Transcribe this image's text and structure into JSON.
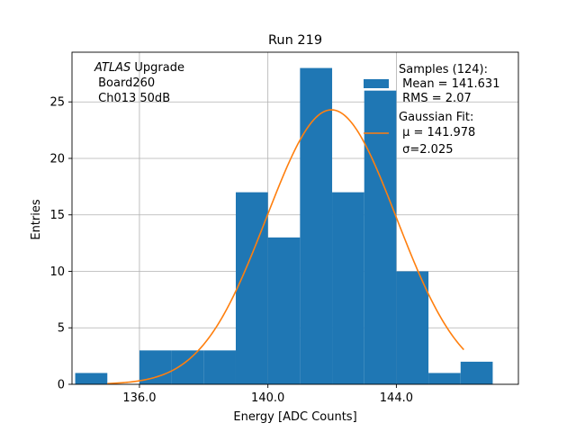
{
  "chart_data": {
    "type": "bar",
    "title": "Run 219",
    "xlabel": "Energy [ADC Counts]",
    "ylabel": "Entries",
    "xlim": [
      133.9,
      147.8
    ],
    "ylim": [
      0,
      29.4
    ],
    "xticks": [
      136.0,
      140.0,
      144.0
    ],
    "xtick_labels": [
      "136.0",
      "140.0",
      "144.0"
    ],
    "yticks": [
      0,
      5,
      10,
      15,
      20,
      25
    ],
    "ytick_labels": [
      "0",
      "5",
      "10",
      "15",
      "20",
      "25"
    ],
    "grid": true,
    "series": [
      {
        "kind": "histogram",
        "color": "#1f77b4",
        "bin_edges": [
          134.0,
          135.0,
          136.0,
          137.0,
          138.0,
          139.0,
          140.0,
          141.0,
          142.0,
          143.0,
          144.0,
          145.0,
          146.0,
          147.0
        ],
        "counts": [
          1,
          0,
          3,
          3,
          3,
          17,
          13,
          28,
          17,
          26,
          10,
          1,
          2
        ]
      },
      {
        "kind": "gaussian_fit",
        "color": "#ff7f0e",
        "mu": 141.978,
        "sigma": 2.025,
        "amplitude": 24.3,
        "x_range": [
          135.0,
          146.1
        ]
      }
    ],
    "annotation": {
      "lines": [
        "ATLAS Upgrade",
        " Board260",
        " Ch013 50dB"
      ],
      "italic_word": "ATLAS",
      "rest_of_line": " Upgrade"
    },
    "legend": {
      "position": "top-right",
      "entries": [
        {
          "kind": "bar",
          "color": "#1f77b4",
          "lines": [
            "Samples (124):",
            " Mean = 141.631",
            " RMS = 2.07"
          ]
        },
        {
          "kind": "line",
          "color": "#ff7f0e",
          "lines": [
            "Gaussian Fit:",
            " μ = 141.978",
            " σ=2.025"
          ]
        }
      ]
    }
  }
}
